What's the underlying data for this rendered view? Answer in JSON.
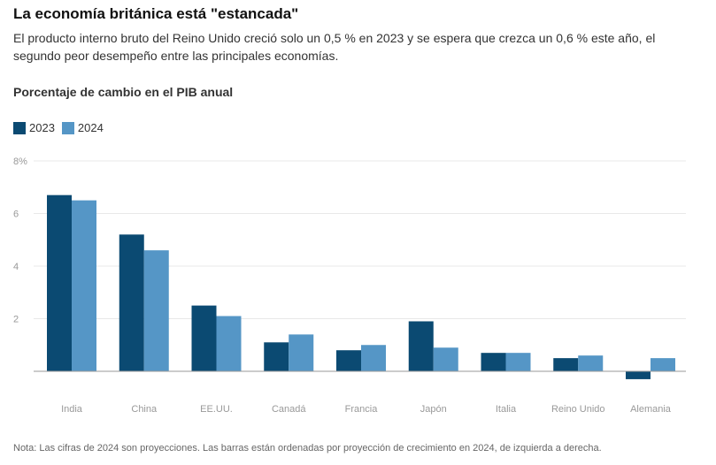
{
  "header": {
    "title": "La economía británica está \"estancada\"",
    "subtitle": "El producto interno bruto del Reino Unido creció solo un 0,5 % en 2023 y se espera que crezca un 0,6 % este año, el segundo peor desempeño entre las principales economías.",
    "chart_heading": "Porcentaje de cambio en el PIB anual"
  },
  "colors": {
    "2023": "#0b4a72",
    "2024": "#5596c6"
  },
  "chart_data": {
    "type": "bar",
    "categories": [
      "India",
      "China",
      "EE.UU.",
      "Canadá",
      "Francia",
      "Japón",
      "Italia",
      "Reino Unido",
      "Alemania"
    ],
    "series": [
      {
        "name": "2023",
        "values": [
          6.7,
          5.2,
          2.5,
          1.1,
          0.8,
          1.9,
          0.7,
          0.5,
          -0.3
        ]
      },
      {
        "name": "2024",
        "values": [
          6.5,
          4.6,
          2.1,
          1.4,
          1.0,
          0.9,
          0.7,
          0.6,
          0.5
        ]
      }
    ],
    "ylim": [
      0,
      8
    ],
    "yticks": [
      {
        "value": 8,
        "label": "8%"
      },
      {
        "value": 6,
        "label": "6"
      },
      {
        "value": 4,
        "label": "4"
      },
      {
        "value": 2,
        "label": "2"
      }
    ],
    "legend": "top-left",
    "grid": true
  },
  "footer": {
    "note": "Nota: Las cifras de 2024 son proyecciones. Las barras están ordenadas por proyección de crecimiento en 2024, de izquierda a derecha."
  }
}
